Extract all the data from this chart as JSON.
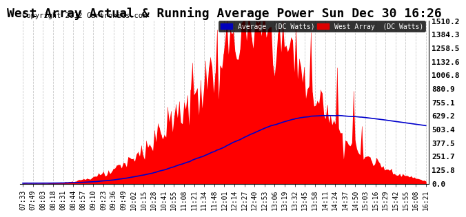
{
  "title": "West Array Actual & Running Average Power Sun Dec 30 16:26",
  "copyright": "Copyright 2012 Cartronics.com",
  "ylabel_right_ticks": [
    0.0,
    125.8,
    251.7,
    377.5,
    503.4,
    629.2,
    755.1,
    880.9,
    1006.8,
    1132.6,
    1258.5,
    1384.3,
    1510.2
  ],
  "ymax": 1510.2,
  "legend_avg_label": "Average  (DC Watts)",
  "legend_west_label": "West Array  (DC Watts)",
  "avg_color": "#0000cc",
  "west_color": "#ff0000",
  "avg_legend_bg": "#0000bb",
  "west_legend_bg": "#dd0000",
  "bg_color": "#ffffff",
  "plot_bg_color": "#ffffff",
  "grid_color": "#bbbbbb",
  "title_fontsize": 13,
  "copyright_fontsize": 7.5,
  "tick_fontsize": 7,
  "x_tick_labels": [
    "07:33",
    "07:49",
    "08:03",
    "08:18",
    "08:31",
    "08:44",
    "08:57",
    "09:10",
    "09:23",
    "09:36",
    "09:49",
    "10:02",
    "10:15",
    "10:28",
    "10:41",
    "10:55",
    "11:08",
    "11:21",
    "11:34",
    "11:48",
    "12:01",
    "12:14",
    "12:27",
    "12:40",
    "12:53",
    "13:06",
    "13:19",
    "13:32",
    "13:45",
    "13:58",
    "14:11",
    "14:24",
    "14:37",
    "14:50",
    "15:03",
    "15:16",
    "15:29",
    "15:42",
    "15:55",
    "16:08",
    "16:21"
  ]
}
